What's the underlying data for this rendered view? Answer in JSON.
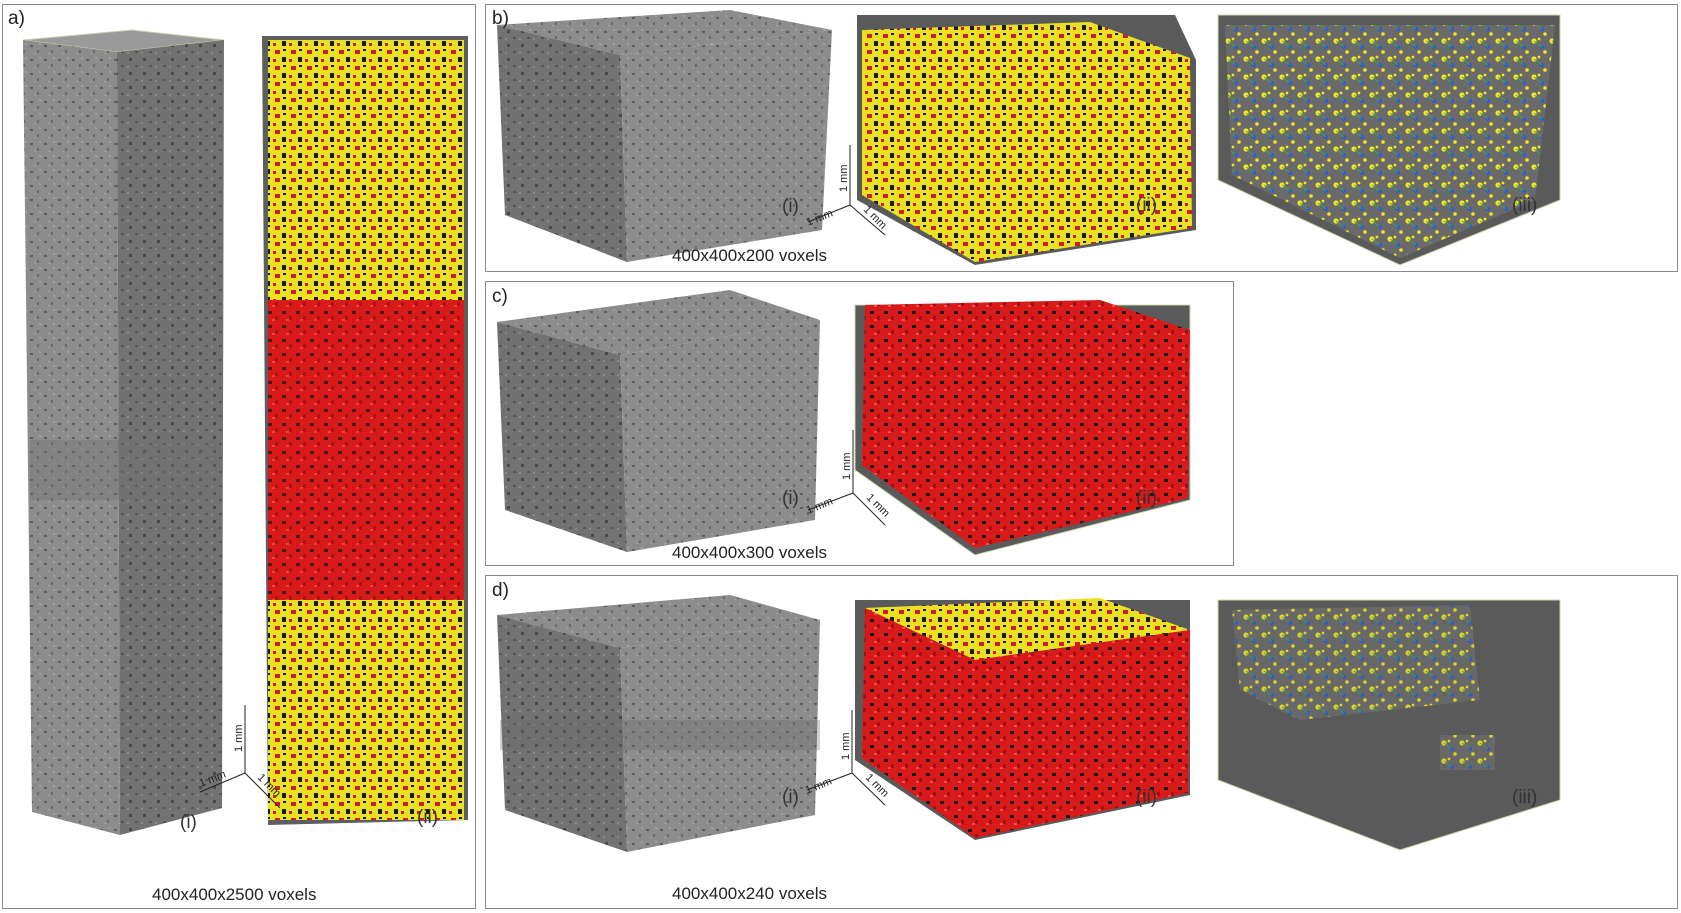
{
  "colors": {
    "rock_gray": "#8f8f8f",
    "pore_red": "#e31a1a",
    "pore_yellow": "#f5ee1a",
    "network_blue": "#2a5bd6",
    "render_bg": "#5a5a5a",
    "frame_edge": "#c8d8b0"
  },
  "panels": {
    "a": {
      "label": "a)",
      "sub_i": "(i)",
      "sub_ii": "(ii)",
      "caption": "400x400x2500 voxels"
    },
    "b": {
      "label": "b)",
      "sub_i": "(i)",
      "sub_ii": "(ii)",
      "sub_iii": "(iii)",
      "caption": "400x400x200 voxels"
    },
    "c": {
      "label": "c)",
      "sub_i": "(i)",
      "sub_ii": "(ii)",
      "caption": "400x400x300 voxels"
    },
    "d": {
      "label": "d)",
      "sub_i": "(i)",
      "sub_ii": "(ii)",
      "sub_iii": "(iii)",
      "caption": "400x400x240 voxels"
    }
  },
  "scale_bar": {
    "label": "1 mm"
  }
}
